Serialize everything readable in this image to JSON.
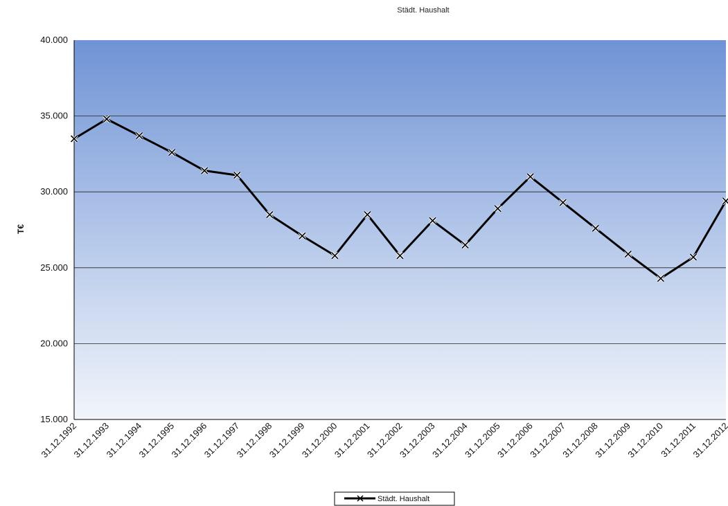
{
  "chart_data": {
    "type": "line",
    "title": "Städt. Haushalt",
    "xlabel": "",
    "ylabel": "T€",
    "ylim": [
      15000,
      40000
    ],
    "yticks": [
      "15.000",
      "20.000",
      "25.000",
      "30.000",
      "35.000",
      "40.000"
    ],
    "grid": true,
    "legend_position": "bottom-center",
    "categories": [
      "31.12.1992",
      "31.12.1993",
      "31.12.1994",
      "31.12.1995",
      "31.12.1996",
      "31.12.1997",
      "31.12.1998",
      "31.12.1999",
      "31.12.2000",
      "31.12.2001",
      "31.12.2002",
      "31.12.2003",
      "31.12.2004",
      "31.12.2005",
      "31.12.2006",
      "31.12.2007",
      "31.12.2008",
      "31.12.2009",
      "31.12.2010",
      "31.12.2011",
      "31.12.2012"
    ],
    "series": [
      {
        "name": "Städt. Haushalt",
        "color": "#000000",
        "marker": "x",
        "values": [
          33500,
          34800,
          33700,
          32600,
          31400,
          31100,
          28500,
          27100,
          25800,
          28500,
          25800,
          28100,
          26500,
          28900,
          31000,
          29300,
          27600,
          25900,
          24300,
          25700,
          29400
        ]
      }
    ],
    "colors": {
      "plot_top": "#6f93d6",
      "plot_bottom": "#f2f5fb",
      "gridline": "#222222",
      "line": "#000000"
    }
  }
}
